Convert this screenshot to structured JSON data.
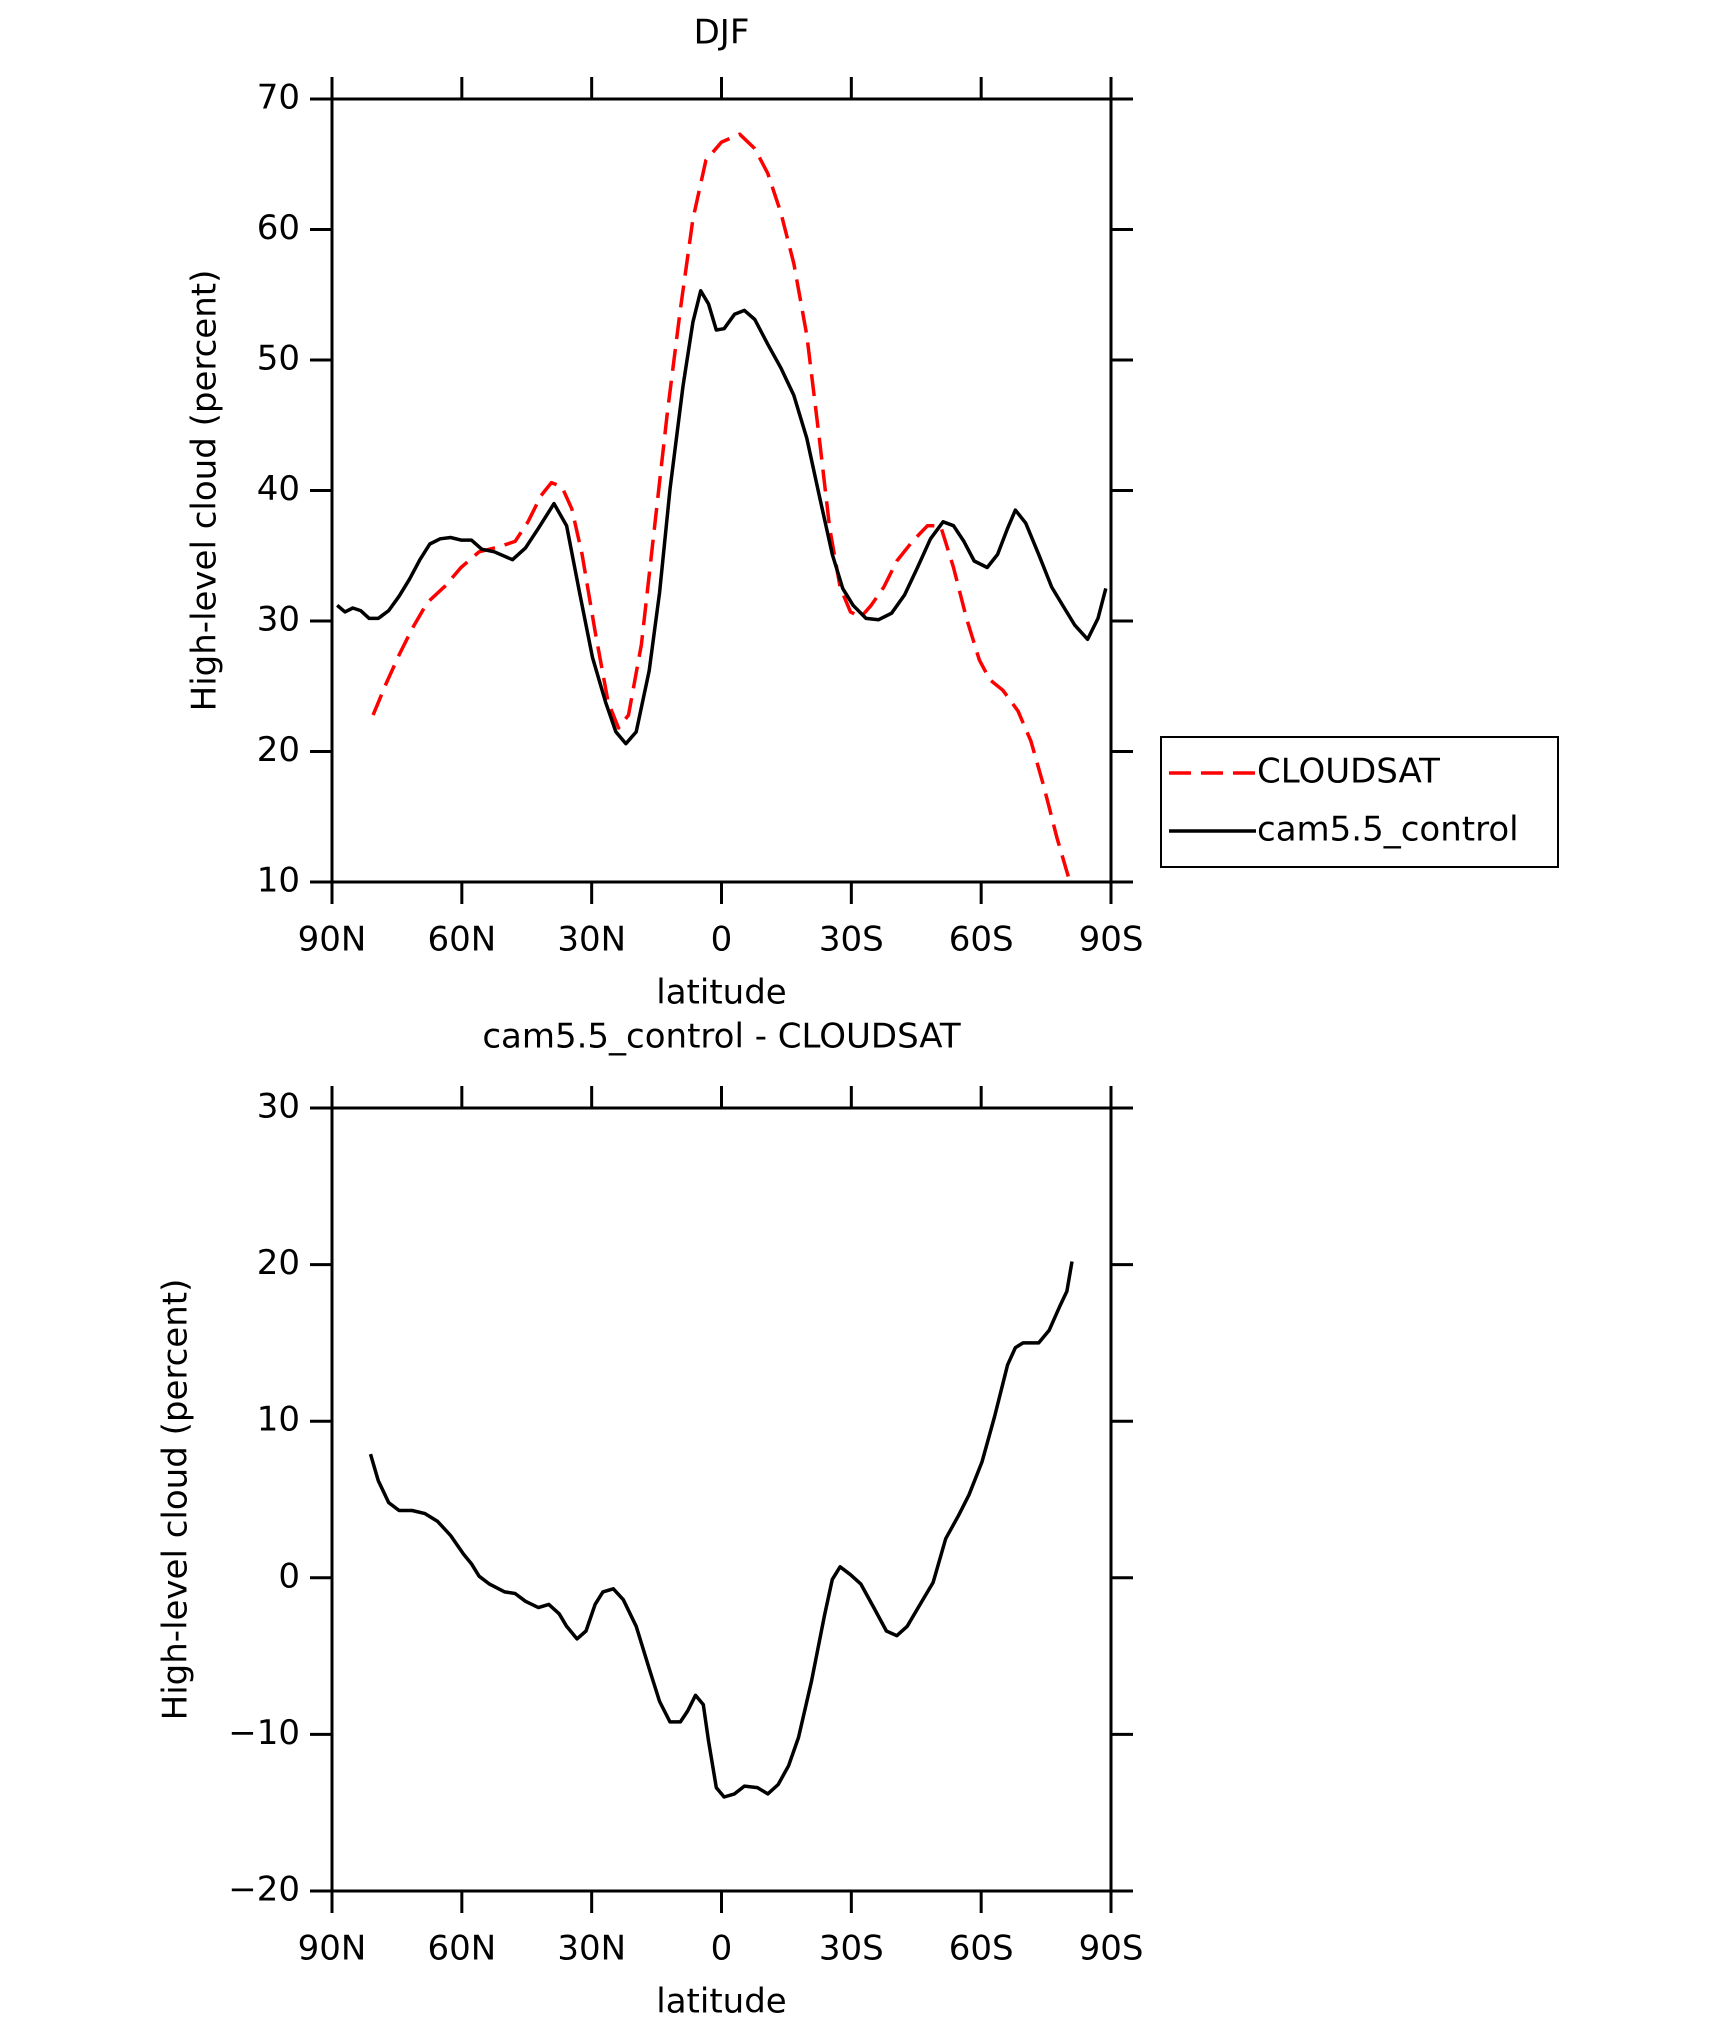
{
  "chart_data": [
    {
      "type": "line",
      "title": "DJF",
      "xlabel": "latitude",
      "ylabel": "High-level cloud (percent)",
      "xlim": [
        90,
        -90
      ],
      "xticks": [
        {
          "value": 90,
          "label": "90N"
        },
        {
          "value": 60,
          "label": "60N"
        },
        {
          "value": 30,
          "label": "30N"
        },
        0,
        {
          "value": -30,
          "label": "30S"
        },
        {
          "value": -60,
          "label": "60S"
        },
        {
          "value": -90,
          "label": "90S"
        }
      ],
      "ylim": [
        10,
        70
      ],
      "yticks": [
        10,
        20,
        30,
        40,
        50,
        60,
        70
      ],
      "legend": "right",
      "series": [
        {
          "name": "CLOUDSAT",
          "color": "#ff0000",
          "dash": true,
          "x": [
            80.5,
            77.5,
            74.5,
            71.5,
            68,
            63.8,
            60.2,
            56,
            51.3,
            47.7,
            44.7,
            41.7,
            39.3,
            36.9,
            34.6,
            32.2,
            29.2,
            26.2,
            23.8,
            21.5,
            18.5,
            15.5,
            12.5,
            9.5,
            6.6,
            3.6,
            0,
            -4.2,
            -7.7,
            -10.7,
            -13.7,
            -16.7,
            -19.7,
            -22.6,
            -25,
            -27.4,
            -29.8,
            -32.2,
            -34.6,
            -37.5,
            -40.5,
            -44.1,
            -47.6,
            -50.6,
            -53.6,
            -56.6,
            -59.6,
            -62,
            -65,
            -68.5,
            -71.5,
            -74.5,
            -77.5,
            -80.5
          ],
          "values": [
            22.8,
            25.2,
            27.4,
            29.4,
            31.4,
            32.7,
            34.1,
            35.3,
            35.7,
            36.1,
            37.6,
            39.6,
            40.6,
            40.3,
            38.6,
            35.1,
            29.2,
            23.8,
            21.8,
            22.8,
            28.2,
            37.1,
            46.0,
            53.9,
            60.8,
            65.3,
            66.7,
            67.3,
            66.2,
            64.3,
            61.3,
            57.4,
            51.9,
            44.0,
            37.1,
            32.6,
            30.7,
            30.3,
            31.2,
            32.6,
            34.6,
            36.1,
            37.3,
            37.3,
            34.1,
            30.2,
            27.0,
            25.5,
            24.7,
            23.1,
            20.8,
            17.3,
            13.4,
            10.0
          ]
        },
        {
          "name": "cam5.5_control",
          "color": "#000000",
          "dash": false,
          "x": [
            88.8,
            87,
            85.2,
            83.4,
            81.4,
            79.3,
            76.9,
            74.5,
            72.1,
            69.7,
            67.4,
            65,
            62.6,
            60.2,
            57.8,
            55.4,
            52.5,
            48.3,
            45.3,
            42.3,
            38.7,
            35.8,
            32.8,
            29.8,
            26.8,
            24.4,
            22.1,
            19.7,
            16.7,
            14.3,
            11.9,
            8.9,
            6.6,
            4.8,
            3,
            1.2,
            -0.6,
            -3,
            -5.3,
            -7.7,
            -10.7,
            -13.7,
            -16.7,
            -19.7,
            -22.6,
            -25.6,
            -28,
            -30.4,
            -33.4,
            -36.3,
            -39.3,
            -42.3,
            -45.3,
            -48.3,
            -51.2,
            -53.6,
            -56,
            -58.4,
            -61.4,
            -63.8,
            -66.1,
            -67.9,
            -70.3,
            -73.3,
            -76.3,
            -79.2,
            -81.6,
            -84.6,
            -87,
            -88.8
          ],
          "values": [
            31.2,
            30.7,
            31.0,
            30.8,
            30.2,
            30.2,
            30.8,
            31.9,
            33.2,
            34.7,
            35.9,
            36.3,
            36.4,
            36.2,
            36.2,
            35.5,
            35.3,
            34.7,
            35.6,
            37.1,
            39.0,
            37.3,
            32.2,
            27.2,
            23.8,
            21.5,
            20.6,
            21.5,
            26.2,
            32.2,
            40.1,
            48.0,
            52.9,
            55.3,
            54.3,
            52.3,
            52.4,
            53.5,
            53.8,
            53.1,
            51.2,
            49.4,
            47.3,
            44.0,
            39.6,
            35.1,
            32.5,
            31.2,
            30.2,
            30.1,
            30.6,
            32.0,
            34.1,
            36.3,
            37.6,
            37.3,
            36.1,
            34.6,
            34.1,
            35.1,
            37.1,
            38.5,
            37.5,
            35.1,
            32.6,
            31.0,
            29.7,
            28.6,
            30.2,
            32.5
          ]
        }
      ]
    },
    {
      "type": "line",
      "title": "cam5.5_control - CLOUDSAT",
      "xlabel": "latitude",
      "ylabel": "High-level cloud (percent)",
      "xlim": [
        90,
        -90
      ],
      "xticks": [
        {
          "value": 90,
          "label": "90N"
        },
        {
          "value": 60,
          "label": "60N"
        },
        {
          "value": 30,
          "label": "30N"
        },
        0,
        {
          "value": -30,
          "label": "30S"
        },
        {
          "value": -60,
          "label": "60S"
        },
        {
          "value": -90,
          "label": "90S"
        }
      ],
      "ylim": [
        -20,
        30
      ],
      "yticks": [
        {
          "value": -20,
          "label": "−20"
        },
        {
          "value": -10,
          "label": "−10"
        },
        0,
        10,
        20,
        30
      ],
      "series": [
        {
          "color": "#000000",
          "dash": false,
          "x": [
            81.1,
            79.3,
            76.9,
            74.5,
            71.5,
            68.5,
            65.6,
            62.6,
            59.6,
            57.8,
            56,
            53.6,
            50.1,
            47.7,
            45.3,
            42.3,
            39.9,
            37.5,
            35.8,
            33.4,
            31.3,
            29.2,
            27.4,
            25,
            22.7,
            19.7,
            16.7,
            14.3,
            11.9,
            9.5,
            7.8,
            6,
            4.2,
            3,
            1.2,
            -0.6,
            -3,
            -5.3,
            -8.3,
            -10.7,
            -13.1,
            -15.5,
            -17.8,
            -20.8,
            -23.8,
            -25.6,
            -27.4,
            -29.8,
            -32.2,
            -35.2,
            -38.1,
            -40.5,
            -42.9,
            -45.9,
            -48.9,
            -51.8,
            -54.8,
            -57.2,
            -60.2,
            -63.1,
            -66.1,
            -67.9,
            -69.7,
            -73.3,
            -75.7,
            -78.1,
            -79.8,
            -81
          ],
          "values": [
            7.9,
            6.2,
            4.8,
            4.3,
            4.3,
            4.1,
            3.6,
            2.7,
            1.5,
            0.9,
            0.1,
            -0.4,
            -0.9,
            -1.0,
            -1.5,
            -1.9,
            -1.7,
            -2.3,
            -3.1,
            -3.9,
            -3.4,
            -1.7,
            -0.9,
            -0.7,
            -1.4,
            -3.1,
            -5.8,
            -7.9,
            -9.2,
            -9.2,
            -8.5,
            -7.5,
            -8.1,
            -10.4,
            -13.4,
            -14.0,
            -13.8,
            -13.3,
            -13.4,
            -13.8,
            -13.2,
            -12.0,
            -10.2,
            -6.6,
            -2.4,
            -0.1,
            0.7,
            0.2,
            -0.4,
            -1.9,
            -3.4,
            -3.7,
            -3.1,
            -1.7,
            -0.3,
            2.5,
            4.0,
            5.3,
            7.4,
            10.3,
            13.6,
            14.7,
            15.0,
            15.0,
            15.8,
            17.3,
            18.3,
            20.2
          ]
        }
      ]
    }
  ]
}
